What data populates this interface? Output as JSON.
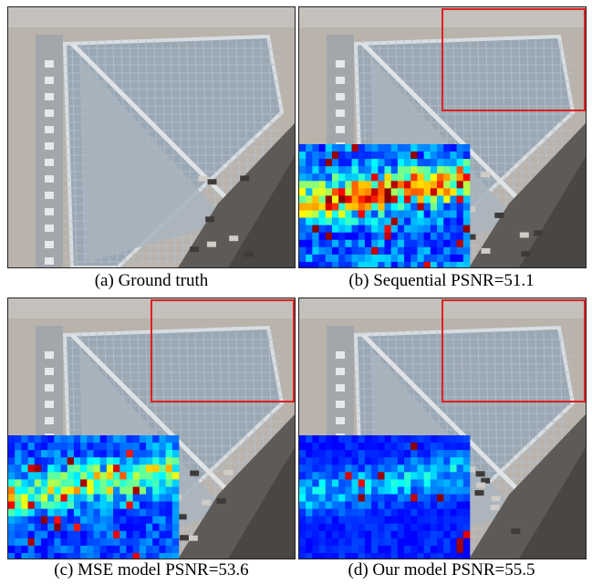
{
  "figure": {
    "panels": [
      {
        "id": "a",
        "caption": "(a) Ground truth",
        "has_crop_box": false,
        "has_error_map": false
      },
      {
        "id": "b",
        "caption": "(b) Sequential PSNR=51.1",
        "has_crop_box": true,
        "has_error_map": true,
        "error_level": 0.75
      },
      {
        "id": "c",
        "caption": "(c) MSE model PSNR=53.6",
        "has_crop_box": true,
        "has_error_map": true,
        "error_level": 0.55
      },
      {
        "id": "d",
        "caption": "(d) Our model PSNR=55.5",
        "has_crop_box": true,
        "has_error_map": true,
        "error_level": 0.25
      }
    ],
    "colors": {
      "crop_box": "#e02020",
      "roof": "#9aa8b4",
      "ground": "#b9b3ac",
      "shadow": "#5e5a58"
    }
  }
}
